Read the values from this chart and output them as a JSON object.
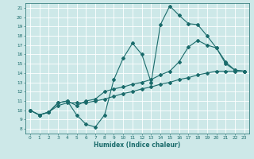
{
  "xlabel": "Humidex (Indice chaleur)",
  "bg_color": "#cde8e8",
  "grid_color": "#ffffff",
  "line_color": "#1a6b6b",
  "xlim": [
    -0.5,
    23.5
  ],
  "ylim": [
    7.5,
    21.5
  ],
  "xticks": [
    0,
    1,
    2,
    3,
    4,
    5,
    6,
    7,
    8,
    9,
    10,
    11,
    12,
    13,
    14,
    15,
    16,
    17,
    18,
    19,
    20,
    21,
    22,
    23
  ],
  "yticks": [
    8,
    9,
    10,
    11,
    12,
    13,
    14,
    15,
    16,
    17,
    18,
    19,
    20,
    21
  ],
  "lines": [
    {
      "x": [
        0,
        1,
        2,
        3,
        4,
        5,
        6,
        7,
        8,
        9,
        10,
        11,
        12,
        13,
        14,
        15,
        16,
        17,
        18,
        19,
        20,
        21,
        22,
        23
      ],
      "y": [
        10,
        9.5,
        9.8,
        10.8,
        11.0,
        9.5,
        8.5,
        8.2,
        9.5,
        13.3,
        15.6,
        17.2,
        16.0,
        13.0,
        19.2,
        21.2,
        20.2,
        19.3,
        19.2,
        18.0,
        16.7,
        15.2,
        14.3,
        14.2
      ]
    },
    {
      "x": [
        0,
        1,
        2,
        3,
        4,
        5,
        6,
        7,
        8,
        9,
        10,
        11,
        12,
        13,
        14,
        15,
        16,
        17,
        18,
        19,
        20,
        21,
        22,
        23
      ],
      "y": [
        10,
        9.5,
        9.8,
        10.8,
        11.0,
        10.5,
        11.0,
        11.2,
        12.0,
        12.3,
        12.5,
        12.8,
        13.0,
        13.3,
        13.8,
        14.2,
        15.2,
        16.8,
        17.5,
        17.0,
        16.7,
        15.0,
        14.3,
        14.2
      ]
    },
    {
      "x": [
        0,
        1,
        2,
        3,
        4,
        5,
        6,
        7,
        8,
        9,
        10,
        11,
        12,
        13,
        14,
        15,
        16,
        17,
        18,
        19,
        20,
        21,
        22,
        23
      ],
      "y": [
        10,
        9.5,
        9.8,
        10.5,
        10.8,
        10.8,
        10.8,
        11.0,
        11.2,
        11.5,
        11.8,
        12.0,
        12.3,
        12.5,
        12.8,
        13.0,
        13.3,
        13.5,
        13.8,
        14.0,
        14.2,
        14.2,
        14.2,
        14.2
      ]
    }
  ]
}
